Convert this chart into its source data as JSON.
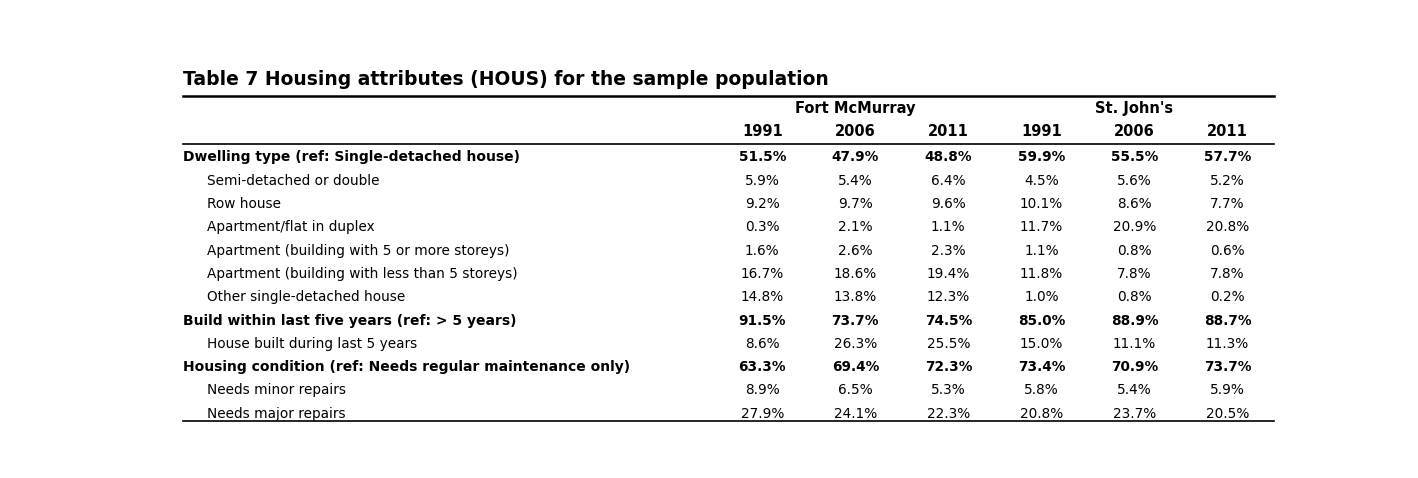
{
  "title": "Table 7 Housing attributes (HOUS) for the sample population",
  "rows": [
    {
      "label": "Dwelling type (ref: Single-detached house)",
      "bold": true,
      "indent": false,
      "values": [
        "51.5%",
        "47.9%",
        "48.8%",
        "59.9%",
        "55.5%",
        "57.7%"
      ],
      "values_bold": true
    },
    {
      "label": "Semi-detached or double",
      "bold": false,
      "indent": true,
      "values": [
        "5.9%",
        "5.4%",
        "6.4%",
        "4.5%",
        "5.6%",
        "5.2%"
      ],
      "values_bold": false
    },
    {
      "label": "Row house",
      "bold": false,
      "indent": true,
      "values": [
        "9.2%",
        "9.7%",
        "9.6%",
        "10.1%",
        "8.6%",
        "7.7%"
      ],
      "values_bold": false
    },
    {
      "label": "Apartment/flat in duplex",
      "bold": false,
      "indent": true,
      "values": [
        "0.3%",
        "2.1%",
        "1.1%",
        "11.7%",
        "20.9%",
        "20.8%"
      ],
      "values_bold": false
    },
    {
      "label": "Apartment (building with 5 or more storeys)",
      "bold": false,
      "indent": true,
      "values": [
        "1.6%",
        "2.6%",
        "2.3%",
        "1.1%",
        "0.8%",
        "0.6%"
      ],
      "values_bold": false
    },
    {
      "label": "Apartment (building with less than 5 storeys)",
      "bold": false,
      "indent": true,
      "values": [
        "16.7%",
        "18.6%",
        "19.4%",
        "11.8%",
        "7.8%",
        "7.8%"
      ],
      "values_bold": false
    },
    {
      "label": "Other single-detached house",
      "bold": false,
      "indent": true,
      "values": [
        "14.8%",
        "13.8%",
        "12.3%",
        "1.0%",
        "0.8%",
        "0.2%"
      ],
      "values_bold": false
    },
    {
      "label": "Build within last five years (ref: > 5 years)",
      "bold": true,
      "indent": false,
      "values": [
        "91.5%",
        "73.7%",
        "74.5%",
        "85.0%",
        "88.9%",
        "88.7%"
      ],
      "values_bold": true
    },
    {
      "label": "House built during last 5 years",
      "bold": false,
      "indent": true,
      "values": [
        "8.6%",
        "26.3%",
        "25.5%",
        "15.0%",
        "11.1%",
        "11.3%"
      ],
      "values_bold": false
    },
    {
      "label": "Housing condition (ref: Needs regular maintenance only)",
      "bold": true,
      "indent": false,
      "values": [
        "63.3%",
        "69.4%",
        "72.3%",
        "73.4%",
        "70.9%",
        "73.7%"
      ],
      "values_bold": true
    },
    {
      "label": "Needs minor repairs",
      "bold": false,
      "indent": true,
      "values": [
        "8.9%",
        "6.5%",
        "5.3%",
        "5.8%",
        "5.4%",
        "5.9%"
      ],
      "values_bold": false
    },
    {
      "label": "Needs major repairs",
      "bold": false,
      "indent": true,
      "values": [
        "27.9%",
        "24.1%",
        "22.3%",
        "20.8%",
        "23.7%",
        "20.5%"
      ],
      "values_bold": false
    }
  ],
  "background_color": "#ffffff",
  "text_color": "#000000",
  "title_fontsize": 13.5,
  "header_fontsize": 10.5,
  "cell_fontsize": 9.8
}
